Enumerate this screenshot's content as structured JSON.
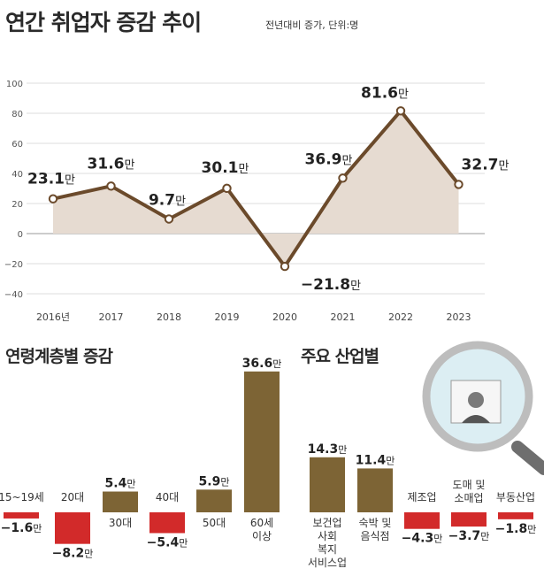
{
  "header": {
    "title": "연간 취업자 증감 추이",
    "subtitle": "전년대비 증가, 단위:명"
  },
  "sections": {
    "age_title": "연령계층별 증감",
    "industry_title": "주요 산업별"
  },
  "colors": {
    "line": "#6b4a2b",
    "area": "#e6dbd1",
    "positive_bar": "#7d6435",
    "negative_bar": "#d22a2a",
    "grid": "#d0d0d0"
  },
  "chart_data": [
    {
      "type": "area",
      "title": "연간 취업자 증감 추이",
      "subtitle": "전년대비 증가, 단위:명",
      "categories": [
        "2016년",
        "2017",
        "2018",
        "2019",
        "2020",
        "2021",
        "2022",
        "2023"
      ],
      "values": [
        23.1,
        31.6,
        9.7,
        30.1,
        -21.8,
        36.9,
        81.6,
        32.7
      ],
      "value_labels": [
        "23.1",
        "31.6",
        "9.7",
        "30.1",
        "−21.8",
        "36.9",
        "81.6",
        "32.7"
      ],
      "label_unit": "만",
      "yticks": [
        "100",
        "80",
        "60",
        "40",
        "20",
        "0",
        "−20",
        "−40"
      ],
      "ylim": [
        -40,
        100
      ],
      "grid": true
    },
    {
      "type": "bar",
      "title": "연령계층별 증감",
      "categories": [
        "15~19세",
        "20대",
        "30대",
        "40대",
        "50대",
        "60세 이상"
      ],
      "values": [
        -1.6,
        -8.2,
        5.4,
        -5.4,
        5.9,
        36.6
      ],
      "value_labels": [
        "−1.6",
        "−8.2",
        "5.4",
        "−5.4",
        "5.9",
        "36.6"
      ],
      "label_unit": "만"
    },
    {
      "type": "bar",
      "title": "주요 산업별",
      "categories": [
        "보건업 사회 복지 서비스업",
        "숙박 및 음식점",
        "제조업",
        "도매 및 소매업",
        "부동산업"
      ],
      "values": [
        14.3,
        11.4,
        -4.3,
        -3.7,
        -1.8
      ],
      "value_labels": [
        "14.3",
        "11.4",
        "−4.3",
        "−3.7",
        "−1.8"
      ],
      "label_unit": "만"
    }
  ]
}
